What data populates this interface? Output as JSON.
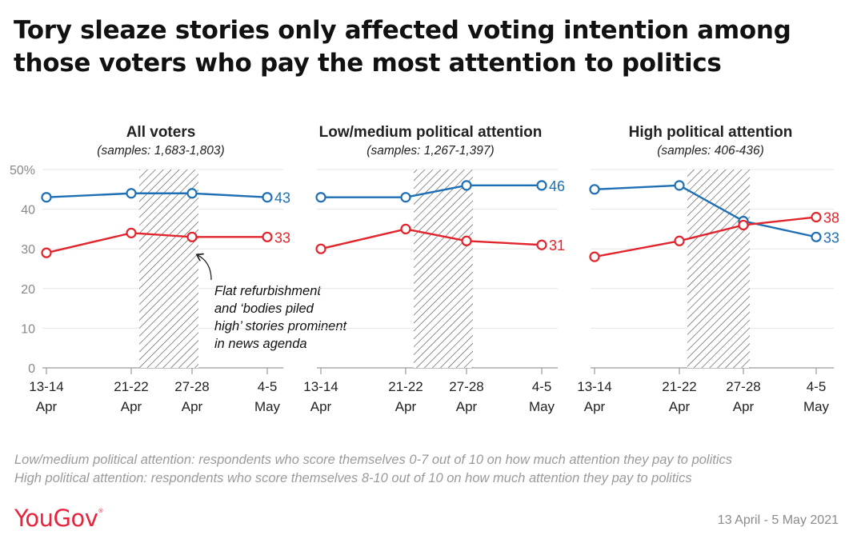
{
  "title": "Tory sleaze stories only affected voting intention among those voters who pay the most attention to politics",
  "colors": {
    "blue": "#1f6fb4",
    "red": "#e2252d",
    "axis": "#888888",
    "text": "#333333"
  },
  "footnotes": [
    "Low/medium political attention: respondents who score themselves 0-7 out of 10 on how much attention they pay to politics",
    "High political attention: respondents who score themselves 8-10 out of 10 on how much attention they pay to politics"
  ],
  "logo": {
    "text": "YouGov",
    "mark": "®"
  },
  "date_range": "13 April - 5 May 2021",
  "chart_data": [
    {
      "type": "line",
      "title": "All voters",
      "subtitle": "(samples: 1,683-1,803)",
      "x": [
        "13-14 Apr",
        "21-22 Apr",
        "27-28 Apr",
        "4-5 May"
      ],
      "x_tick_lines": [
        [
          "13-14",
          "Apr"
        ],
        [
          "21-22",
          "Apr"
        ],
        [
          "27-28",
          "Apr"
        ],
        [
          "4-5",
          "May"
        ]
      ],
      "ylim": [
        0,
        50
      ],
      "yticks": [
        "0",
        "10",
        "20",
        "30",
        "40",
        "50%"
      ],
      "shaded_range": [
        "21-22 Apr",
        "27-28 Apr"
      ],
      "series": [
        {
          "color": "blue",
          "values": [
            43,
            44,
            44,
            43
          ],
          "end_label": "43"
        },
        {
          "color": "red",
          "values": [
            29,
            34,
            33,
            33
          ],
          "end_label": "33"
        }
      ],
      "annotation": [
        "Flat refurbishment",
        "and ‘bodies piled",
        "high’ stories prominent",
        "in news agenda"
      ]
    },
    {
      "type": "line",
      "title": "Low/medium political attention",
      "subtitle": "(samples: 1,267-1,397)",
      "x": [
        "13-14 Apr",
        "21-22 Apr",
        "27-28 Apr",
        "4-5 May"
      ],
      "x_tick_lines": [
        [
          "13-14",
          "Apr"
        ],
        [
          "21-22",
          "Apr"
        ],
        [
          "27-28",
          "Apr"
        ],
        [
          "4-5",
          "May"
        ]
      ],
      "ylim": [
        0,
        50
      ],
      "shaded_range": [
        "21-22 Apr",
        "27-28 Apr"
      ],
      "series": [
        {
          "color": "blue",
          "values": [
            43,
            43,
            46,
            46
          ],
          "end_label": "46"
        },
        {
          "color": "red",
          "values": [
            30,
            35,
            32,
            31
          ],
          "end_label": "31"
        }
      ]
    },
    {
      "type": "line",
      "title": "High political attention",
      "subtitle": "(samples: 406-436)",
      "x": [
        "13-14 Apr",
        "21-22 Apr",
        "27-28 Apr",
        "4-5 May"
      ],
      "x_tick_lines": [
        [
          "13-14",
          "Apr"
        ],
        [
          "21-22",
          "Apr"
        ],
        [
          "27-28",
          "Apr"
        ],
        [
          "4-5",
          "May"
        ]
      ],
      "ylim": [
        0,
        50
      ],
      "shaded_range": [
        "21-22 Apr",
        "27-28 Apr"
      ],
      "series": [
        {
          "color": "blue",
          "values": [
            45,
            46,
            37,
            33
          ],
          "end_label": "33"
        },
        {
          "color": "red",
          "values": [
            28,
            32,
            36,
            38
          ],
          "end_label": "38"
        }
      ]
    }
  ]
}
